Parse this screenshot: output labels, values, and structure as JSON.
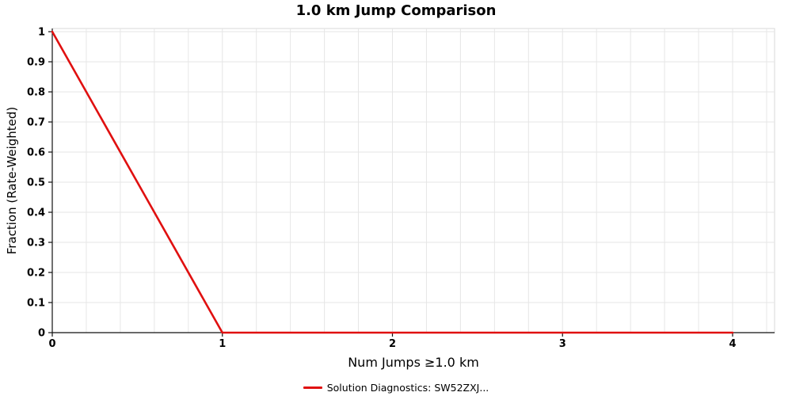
{
  "title": "1.0 km Jump Comparison",
  "chart_data": {
    "type": "line",
    "title": "1.0 km Jump Comparison",
    "xlabel": "Num Jumps ≥1.0 km",
    "ylabel": "Fraction (Rate-Weighted)",
    "xlim": [
      0,
      4
    ],
    "ylim": [
      0,
      1
    ],
    "grid": true,
    "grid_color": "#e6e6e6",
    "x_grid_step": 0.2,
    "y_grid_step": 0.1,
    "legend_position": "bottom",
    "x_ticks": {
      "values": [
        0,
        1,
        2,
        3,
        4
      ],
      "labels": [
        "0",
        "1",
        "2",
        "3",
        "4"
      ]
    },
    "y_ticks": {
      "values": [
        0,
        0.1,
        0.2,
        0.3,
        0.4,
        0.5,
        0.6,
        0.7,
        0.8,
        0.9,
        1
      ],
      "labels": [
        "0",
        "0.1",
        "0.2",
        "0.3",
        "0.4",
        "0.5",
        "0.6",
        "0.7",
        "0.8",
        "0.9",
        "1"
      ]
    },
    "series": [
      {
        "name": "Solution Diagnostics: SW52ZXJ...",
        "color": "#e01010",
        "x": [
          0,
          1,
          2,
          3,
          4
        ],
        "y": [
          1,
          0,
          0,
          0,
          0
        ]
      }
    ]
  }
}
